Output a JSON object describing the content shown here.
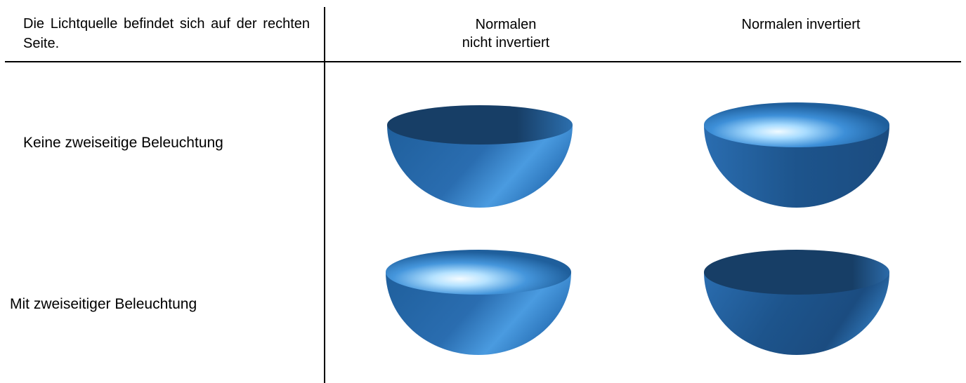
{
  "note": "Die Lichtquelle befindet sich auf der rechten Seite.",
  "columns": [
    {
      "line1": "Normalen",
      "line2": "nicht invertiert"
    },
    {
      "line1": "Normalen invertiert",
      "line2": ""
    }
  ],
  "rows": [
    {
      "label": "Keine zweiseitige Beleuchtung"
    },
    {
      "label": "Mit zweiseitiger Beleuchtung"
    }
  ],
  "colors": {
    "bowl_dark": "#163f66",
    "bowl_mid": "#2568a8",
    "bowl_light": "#4a9de0",
    "highlight": "#e8f6ff",
    "lines": "#000000"
  }
}
